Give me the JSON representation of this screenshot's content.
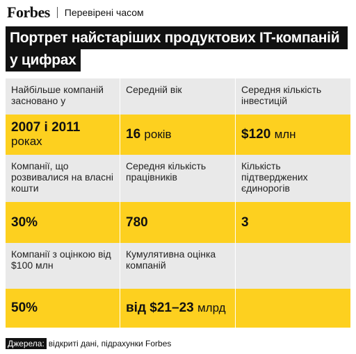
{
  "header": {
    "brand": "Forbes",
    "section": "Перевірені часом"
  },
  "title": {
    "line1": "Портрет найстаріших продуктових IT-компаній",
    "line2": "у цифрах"
  },
  "table": {
    "rows": [
      [
        {
          "label": "Найбільше компаній засновано у",
          "value": "2007 і 2011",
          "unit": "роках"
        },
        {
          "label": "Середній вік",
          "value": "16",
          "unit": "років"
        },
        {
          "label": "Середня кількість інвестицій",
          "value": "$120",
          "unit": "млн"
        }
      ],
      [
        {
          "label": "Компанії, що розвивалися на власні кошти",
          "value": "30%"
        },
        {
          "label": "Середня кількість працівників",
          "value": "780"
        },
        {
          "label": "Кількість підтверджених єдинорогів",
          "value": "3"
        }
      ],
      [
        {
          "label": "Компанії з оцінкою від $100 млн",
          "value": "50%"
        },
        {
          "label": "Кумулятивна оцінка компаній",
          "value": "від $21–23",
          "unit": "млрд"
        }
      ]
    ]
  },
  "footer": {
    "source_label": "Джерела:",
    "source_text": "відкриті дані, підрахунки Forbes"
  }
}
